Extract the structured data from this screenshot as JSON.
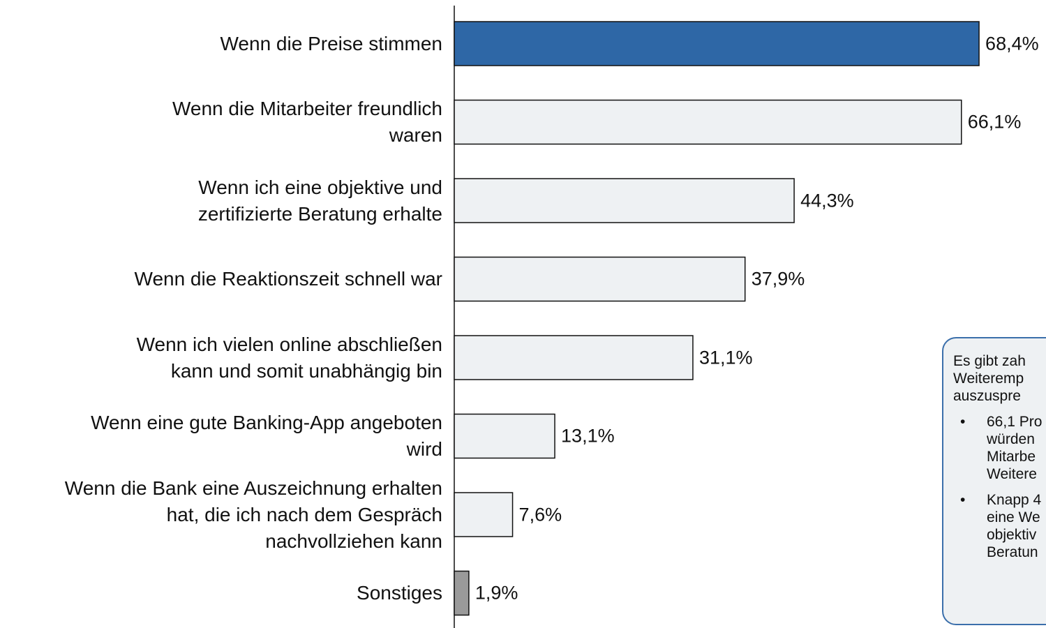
{
  "chart_data": {
    "type": "hbar",
    "categories": [
      "Wenn die Preise stimmen",
      "Wenn die Mitarbeiter freundlich\nwaren",
      "Wenn ich eine objektive und\nzertifizierte Beratung erhalte",
      "Wenn die Reaktionszeit schnell war",
      "Wenn ich vielen online abschließen\nkann und somit unabhängig bin",
      "Wenn eine gute Banking-App angeboten\nwird",
      "Wenn die Bank eine Auszeichnung erhalten\nhat, die ich nach dem Gespräch\nnachvollziehen kann",
      "Sonstiges"
    ],
    "values": [
      68.4,
      66.1,
      44.3,
      37.9,
      31.1,
      13.1,
      7.6,
      1.9
    ],
    "value_labels": [
      "68,4%",
      "66,1%",
      "44,3%",
      "37,9%",
      "31,1%",
      "13,1%",
      "7,6%",
      "1,9%"
    ],
    "colors": [
      "#2e67a6",
      "#eef1f3",
      "#eef1f3",
      "#eef1f3",
      "#eef1f3",
      "#eef1f3",
      "#eef1f3",
      "#9a9a9a"
    ],
    "annotation": {
      "lines": [
        "Es gibt zah",
        "Weiteremp",
        "auszuspre"
      ],
      "bullets": [
        [
          "66,1 Pro",
          "würden",
          "Mitarbe",
          "Weitere"
        ],
        [
          "Knapp 4",
          "eine We",
          "objektiv",
          "Beratun"
        ]
      ]
    }
  }
}
